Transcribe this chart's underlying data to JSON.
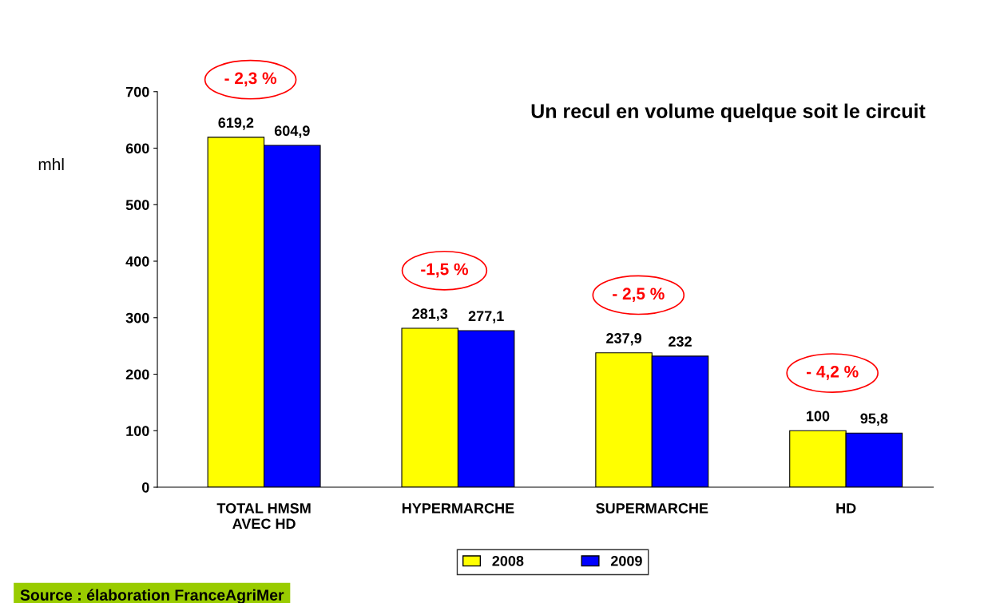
{
  "chart_data": {
    "type": "bar",
    "title": "Un recul en volume quelque soit le circuit",
    "ylabel": "mhl",
    "categories": [
      "TOTAL HMSM\nAVEC HD",
      "HYPERMARCHE",
      "SUPERMARCHE",
      "HD"
    ],
    "series": [
      {
        "name": "2008",
        "color": "#ffff00",
        "values": [
          619.2,
          281.3,
          237.9,
          100
        ]
      },
      {
        "name": "2009",
        "color": "#0000ff",
        "values": [
          604.9,
          277.1,
          232,
          95.8
        ]
      }
    ],
    "value_labels": [
      [
        "619,2",
        "281,3",
        "237,9",
        "100"
      ],
      [
        "604,9",
        "277,1",
        "232",
        "95,8"
      ]
    ],
    "ylim": [
      0,
      700
    ],
    "yticks": [
      0,
      100,
      200,
      300,
      400,
      500,
      600,
      700
    ],
    "grid": false,
    "legend": "bottom",
    "annotations": [
      "- 2,3 %",
      "-1,5 %",
      "- 2,5 %",
      "- 4,2 %",
      "Source : élaboration FranceAgriMer"
    ]
  }
}
